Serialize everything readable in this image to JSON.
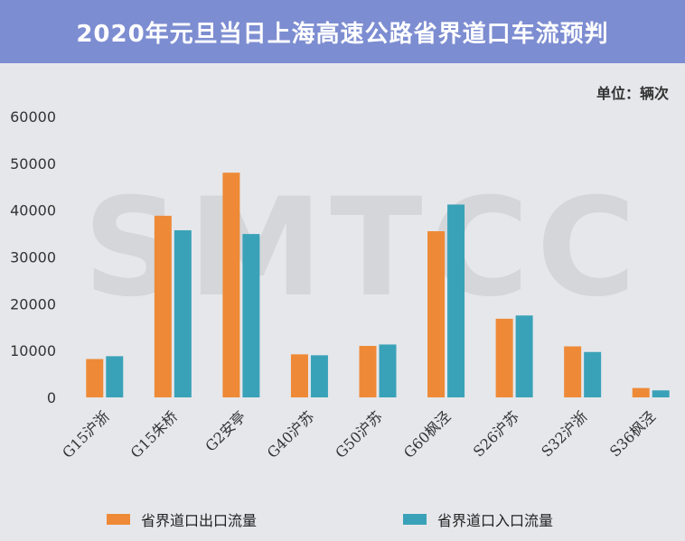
{
  "header": {
    "title": "2020年元旦当日上海高速公路省界道口车流预判"
  },
  "unit_label": "单位：辆次",
  "watermark": "SMTCC",
  "chart_data": {
    "type": "bar",
    "title": "2020年元旦当日上海高速公路省界道口车流预判",
    "xlabel": "",
    "ylabel": "",
    "ylim": [
      0,
      60000
    ],
    "yticks": [
      0,
      10000,
      20000,
      30000,
      40000,
      50000,
      60000
    ],
    "grid": false,
    "legend": "bottom",
    "categories": [
      "G15沪浙",
      "G15朱桥",
      "G2安亭",
      "G40沪苏",
      "G50沪苏",
      "G60枫泾",
      "S26沪苏",
      "S32沪浙",
      "S36枫泾"
    ],
    "series": [
      {
        "name": "省界道口出口流量",
        "color": "#ee8a37",
        "values": [
          8200,
          38800,
          48000,
          9200,
          11000,
          35500,
          16800,
          10900,
          2000
        ]
      },
      {
        "name": "省界道口入口流量",
        "color": "#3aa2b8",
        "values": [
          8800,
          35700,
          34900,
          9000,
          11300,
          41200,
          17500,
          9700,
          1500
        ]
      }
    ]
  }
}
